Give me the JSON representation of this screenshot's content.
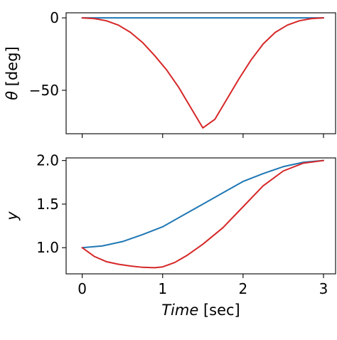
{
  "chart_data": [
    {
      "type": "line",
      "title": "",
      "xlabel": "",
      "ylabel_symbol": "θ",
      "ylabel_unit": "[deg]",
      "xlim": [
        -0.2,
        3.15
      ],
      "ylim": [
        -80,
        3.5
      ],
      "yticks": [
        0,
        -50
      ],
      "ytick_labels": [
        "0",
        "−50"
      ],
      "xticks": [
        0,
        1,
        2,
        3
      ],
      "xtick_labels_shown": false,
      "grid": false,
      "series": [
        {
          "color": "#1f77b4",
          "x": [
            0,
            0.25,
            0.5,
            0.75,
            1.0,
            1.25,
            1.5,
            1.75,
            2.0,
            2.25,
            2.5,
            2.75,
            3.0
          ],
          "y": [
            0,
            0,
            0,
            0,
            0,
            0,
            0,
            0,
            0,
            0,
            0,
            0,
            0
          ]
        },
        {
          "color": "#d62728",
          "x": [
            0,
            0.15,
            0.3,
            0.45,
            0.6,
            0.75,
            0.9,
            1.05,
            1.2,
            1.35,
            1.5,
            1.65,
            1.8,
            1.95,
            2.1,
            2.25,
            2.4,
            2.55,
            2.7,
            2.85,
            3.0
          ],
          "y": [
            0,
            -0.5,
            -2,
            -5,
            -10,
            -17,
            -26,
            -36,
            -48,
            -62,
            -76,
            -70,
            -56,
            -42,
            -29,
            -18,
            -10,
            -5,
            -2,
            -0.5,
            0
          ]
        }
      ]
    },
    {
      "type": "line",
      "title": "",
      "xlabel_italic": "Time",
      "xlabel_unit": "[sec]",
      "ylabel": "y",
      "xlim": [
        -0.2,
        3.15
      ],
      "ylim": [
        0.7,
        2.03
      ],
      "yticks": [
        1.0,
        1.5,
        2.0
      ],
      "ytick_labels": [
        "1.0",
        "1.5",
        "2.0"
      ],
      "xticks": [
        0,
        1,
        2,
        3
      ],
      "xtick_labels": [
        "0",
        "1",
        "2",
        "3"
      ],
      "grid": false,
      "series": [
        {
          "color": "#1f77b4",
          "x": [
            0,
            0.25,
            0.5,
            0.75,
            1.0,
            1.25,
            1.5,
            1.75,
            2.0,
            2.25,
            2.5,
            2.75,
            3.0
          ],
          "y": [
            1.0,
            1.02,
            1.07,
            1.15,
            1.24,
            1.37,
            1.5,
            1.63,
            1.76,
            1.85,
            1.93,
            1.98,
            2.0
          ]
        },
        {
          "color": "#d62728",
          "x": [
            0,
            0.15,
            0.3,
            0.45,
            0.6,
            0.75,
            0.9,
            1.0,
            1.15,
            1.3,
            1.5,
            1.75,
            2.0,
            2.25,
            2.5,
            2.75,
            3.0
          ],
          "y": [
            1.0,
            0.9,
            0.84,
            0.81,
            0.79,
            0.775,
            0.77,
            0.78,
            0.83,
            0.91,
            1.04,
            1.23,
            1.47,
            1.71,
            1.88,
            1.97,
            2.0
          ]
        }
      ]
    }
  ]
}
